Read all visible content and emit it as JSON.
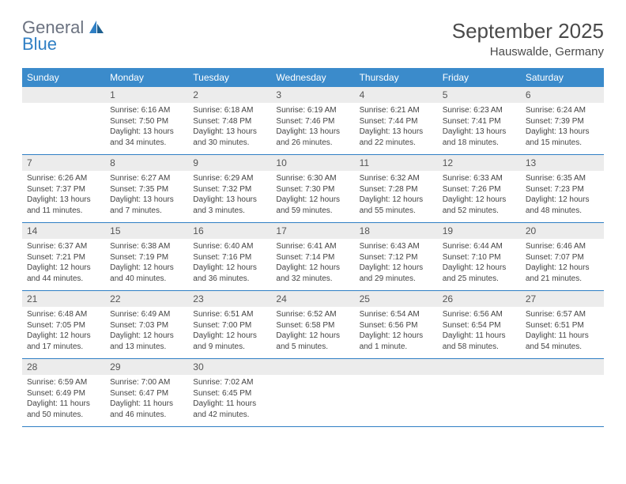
{
  "logo": {
    "general": "General",
    "blue": "Blue"
  },
  "title": "September 2025",
  "location": "Hauswalde, Germany",
  "colors": {
    "header_bg": "#3b8bcb",
    "header_text": "#ffffff",
    "daynum_bg": "#ececec",
    "border": "#2f7fc4",
    "logo_gray": "#6b7280",
    "logo_blue": "#2f7fc4",
    "text": "#444444"
  },
  "weekdays": [
    "Sunday",
    "Monday",
    "Tuesday",
    "Wednesday",
    "Thursday",
    "Friday",
    "Saturday"
  ],
  "weeks": [
    [
      null,
      {
        "n": "1",
        "sr": "Sunrise: 6:16 AM",
        "ss": "Sunset: 7:50 PM",
        "dl": "Daylight: 13 hours and 34 minutes."
      },
      {
        "n": "2",
        "sr": "Sunrise: 6:18 AM",
        "ss": "Sunset: 7:48 PM",
        "dl": "Daylight: 13 hours and 30 minutes."
      },
      {
        "n": "3",
        "sr": "Sunrise: 6:19 AM",
        "ss": "Sunset: 7:46 PM",
        "dl": "Daylight: 13 hours and 26 minutes."
      },
      {
        "n": "4",
        "sr": "Sunrise: 6:21 AM",
        "ss": "Sunset: 7:44 PM",
        "dl": "Daylight: 13 hours and 22 minutes."
      },
      {
        "n": "5",
        "sr": "Sunrise: 6:23 AM",
        "ss": "Sunset: 7:41 PM",
        "dl": "Daylight: 13 hours and 18 minutes."
      },
      {
        "n": "6",
        "sr": "Sunrise: 6:24 AM",
        "ss": "Sunset: 7:39 PM",
        "dl": "Daylight: 13 hours and 15 minutes."
      }
    ],
    [
      {
        "n": "7",
        "sr": "Sunrise: 6:26 AM",
        "ss": "Sunset: 7:37 PM",
        "dl": "Daylight: 13 hours and 11 minutes."
      },
      {
        "n": "8",
        "sr": "Sunrise: 6:27 AM",
        "ss": "Sunset: 7:35 PM",
        "dl": "Daylight: 13 hours and 7 minutes."
      },
      {
        "n": "9",
        "sr": "Sunrise: 6:29 AM",
        "ss": "Sunset: 7:32 PM",
        "dl": "Daylight: 13 hours and 3 minutes."
      },
      {
        "n": "10",
        "sr": "Sunrise: 6:30 AM",
        "ss": "Sunset: 7:30 PM",
        "dl": "Daylight: 12 hours and 59 minutes."
      },
      {
        "n": "11",
        "sr": "Sunrise: 6:32 AM",
        "ss": "Sunset: 7:28 PM",
        "dl": "Daylight: 12 hours and 55 minutes."
      },
      {
        "n": "12",
        "sr": "Sunrise: 6:33 AM",
        "ss": "Sunset: 7:26 PM",
        "dl": "Daylight: 12 hours and 52 minutes."
      },
      {
        "n": "13",
        "sr": "Sunrise: 6:35 AM",
        "ss": "Sunset: 7:23 PM",
        "dl": "Daylight: 12 hours and 48 minutes."
      }
    ],
    [
      {
        "n": "14",
        "sr": "Sunrise: 6:37 AM",
        "ss": "Sunset: 7:21 PM",
        "dl": "Daylight: 12 hours and 44 minutes."
      },
      {
        "n": "15",
        "sr": "Sunrise: 6:38 AM",
        "ss": "Sunset: 7:19 PM",
        "dl": "Daylight: 12 hours and 40 minutes."
      },
      {
        "n": "16",
        "sr": "Sunrise: 6:40 AM",
        "ss": "Sunset: 7:16 PM",
        "dl": "Daylight: 12 hours and 36 minutes."
      },
      {
        "n": "17",
        "sr": "Sunrise: 6:41 AM",
        "ss": "Sunset: 7:14 PM",
        "dl": "Daylight: 12 hours and 32 minutes."
      },
      {
        "n": "18",
        "sr": "Sunrise: 6:43 AM",
        "ss": "Sunset: 7:12 PM",
        "dl": "Daylight: 12 hours and 29 minutes."
      },
      {
        "n": "19",
        "sr": "Sunrise: 6:44 AM",
        "ss": "Sunset: 7:10 PM",
        "dl": "Daylight: 12 hours and 25 minutes."
      },
      {
        "n": "20",
        "sr": "Sunrise: 6:46 AM",
        "ss": "Sunset: 7:07 PM",
        "dl": "Daylight: 12 hours and 21 minutes."
      }
    ],
    [
      {
        "n": "21",
        "sr": "Sunrise: 6:48 AM",
        "ss": "Sunset: 7:05 PM",
        "dl": "Daylight: 12 hours and 17 minutes."
      },
      {
        "n": "22",
        "sr": "Sunrise: 6:49 AM",
        "ss": "Sunset: 7:03 PM",
        "dl": "Daylight: 12 hours and 13 minutes."
      },
      {
        "n": "23",
        "sr": "Sunrise: 6:51 AM",
        "ss": "Sunset: 7:00 PM",
        "dl": "Daylight: 12 hours and 9 minutes."
      },
      {
        "n": "24",
        "sr": "Sunrise: 6:52 AM",
        "ss": "Sunset: 6:58 PM",
        "dl": "Daylight: 12 hours and 5 minutes."
      },
      {
        "n": "25",
        "sr": "Sunrise: 6:54 AM",
        "ss": "Sunset: 6:56 PM",
        "dl": "Daylight: 12 hours and 1 minute."
      },
      {
        "n": "26",
        "sr": "Sunrise: 6:56 AM",
        "ss": "Sunset: 6:54 PM",
        "dl": "Daylight: 11 hours and 58 minutes."
      },
      {
        "n": "27",
        "sr": "Sunrise: 6:57 AM",
        "ss": "Sunset: 6:51 PM",
        "dl": "Daylight: 11 hours and 54 minutes."
      }
    ],
    [
      {
        "n": "28",
        "sr": "Sunrise: 6:59 AM",
        "ss": "Sunset: 6:49 PM",
        "dl": "Daylight: 11 hours and 50 minutes."
      },
      {
        "n": "29",
        "sr": "Sunrise: 7:00 AM",
        "ss": "Sunset: 6:47 PM",
        "dl": "Daylight: 11 hours and 46 minutes."
      },
      {
        "n": "30",
        "sr": "Sunrise: 7:02 AM",
        "ss": "Sunset: 6:45 PM",
        "dl": "Daylight: 11 hours and 42 minutes."
      },
      null,
      null,
      null,
      null
    ]
  ]
}
